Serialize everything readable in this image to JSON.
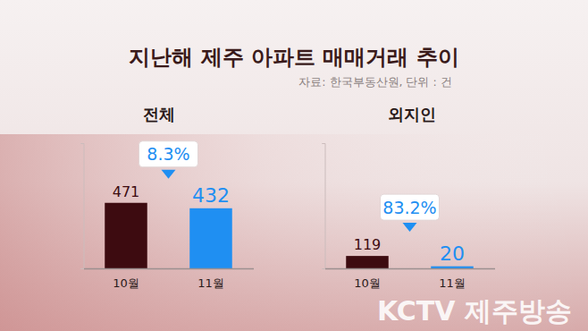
{
  "title": "지난해 제주 아파트 매매거래 추이",
  "subtitle": "자료: 한국부동산원, 단위 : 건",
  "watermark": "KCTV 제주방송",
  "chart_data": [
    {
      "type": "bar",
      "title": "전체",
      "categories": [
        "10월",
        "11월"
      ],
      "values": [
        471,
        432
      ],
      "colors": [
        "#3d0b10",
        "#1f8ff2"
      ],
      "ylim": [
        0,
        900
      ],
      "yticks": [
        0,
        900
      ],
      "data_labels": true,
      "tick_labels": "x",
      "annotations": [
        "8.3%"
      ]
    },
    {
      "type": "bar",
      "title": "외지인",
      "categories": [
        "10월",
        "11월"
      ],
      "values": [
        119,
        20
      ],
      "colors": [
        "#3d0b10",
        "#1f8ff2"
      ],
      "ylim": [
        0,
        1200
      ],
      "yticks": [
        0,
        1200
      ],
      "data_labels": true,
      "tick_labels": "x",
      "annotations": [
        "83.2%"
      ]
    }
  ]
}
